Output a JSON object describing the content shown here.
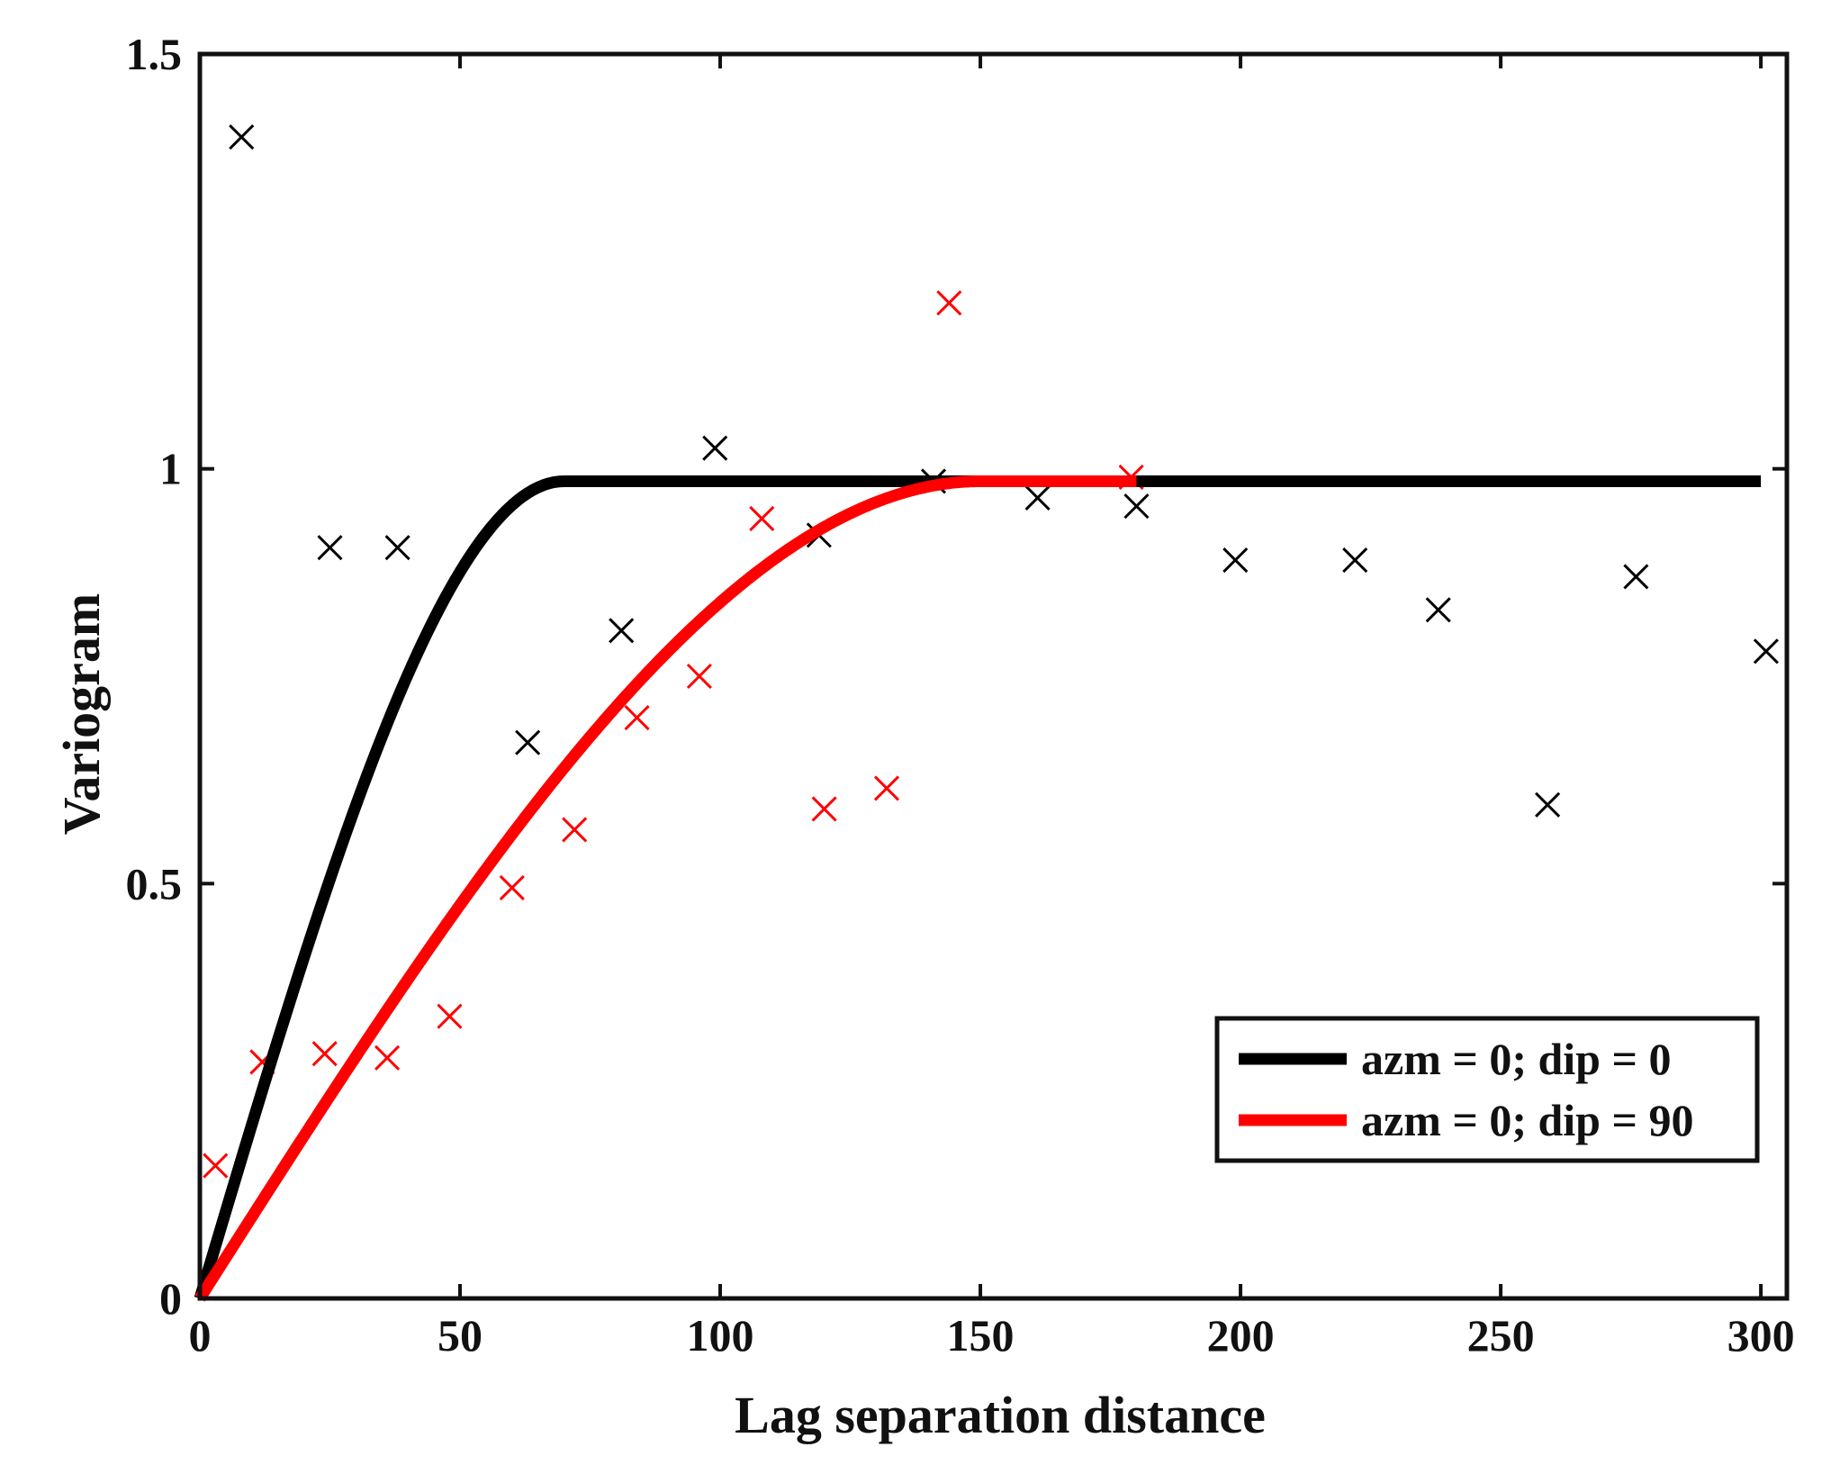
{
  "chart_data": {
    "type": "scatter",
    "title": "",
    "xlabel": "Lag separation distance",
    "ylabel": "Variogram",
    "xlim": [
      0,
      305
    ],
    "ylim": [
      0,
      1.5
    ],
    "xticks": [
      0,
      50,
      100,
      150,
      200,
      250,
      300
    ],
    "xtick_labels": [
      "0",
      "50",
      "100",
      "150",
      "200",
      "250",
      "300"
    ],
    "yticks": [
      0,
      0.5,
      1,
      1.5
    ],
    "ytick_labels": [
      "0",
      "0.5",
      "1",
      "1.5"
    ],
    "grid": false,
    "legend_position": "bottom-right",
    "series": [
      {
        "name": "azm = 0; dip = 0",
        "color": "#000000",
        "model": "spherical",
        "sill": 0.985,
        "range": 70,
        "x_extent": [
          0,
          300
        ],
        "experimental_points": {
          "x": [
            8,
            25,
            38,
            63,
            81,
            99,
            119,
            141,
            161,
            180,
            199,
            222,
            238,
            259,
            276,
            301
          ],
          "y": [
            1.4,
            0.905,
            0.905,
            0.67,
            0.805,
            1.025,
            0.92,
            0.985,
            0.965,
            0.955,
            0.89,
            0.89,
            0.83,
            0.595,
            0.87,
            0.78
          ]
        }
      },
      {
        "name": "azm = 0; dip = 90",
        "color": "#ff0000",
        "model": "spherical",
        "sill": 0.985,
        "range": 150,
        "x_extent": [
          0,
          180
        ],
        "experimental_points": {
          "x": [
            3,
            12,
            24,
            36,
            48,
            60,
            72,
            84,
            96,
            108,
            120,
            132,
            144,
            179
          ],
          "y": [
            0.16,
            0.285,
            0.295,
            0.29,
            0.34,
            0.495,
            0.565,
            0.7,
            0.75,
            0.94,
            0.59,
            0.615,
            1.2,
            0.99
          ]
        }
      }
    ]
  }
}
